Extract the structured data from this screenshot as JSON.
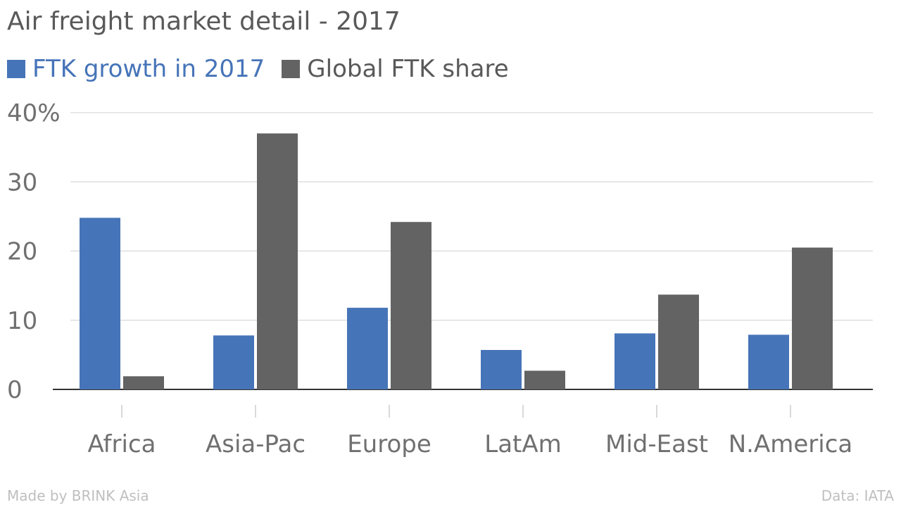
{
  "title": "Air freight market detail - 2017",
  "footer": {
    "made_by": "Made by BRINK Asia",
    "source": "Data: IATA"
  },
  "chart_data": {
    "type": "bar",
    "title": "Air freight market detail - 2017",
    "categories": [
      "Africa",
      "Asia-Pac",
      "Europe",
      "LatAm",
      "Mid-East",
      "N.America"
    ],
    "series": [
      {
        "name": "FTK growth in 2017",
        "color": "#4674b8",
        "values": [
          24.8,
          7.8,
          11.8,
          5.7,
          8.1,
          7.9
        ]
      },
      {
        "name": "Global FTK share",
        "color": "#636363",
        "values": [
          1.9,
          37.0,
          24.2,
          2.7,
          13.7,
          20.5
        ]
      }
    ],
    "ylim": [
      0,
      40
    ],
    "yticks": [
      0,
      10,
      20,
      30,
      40
    ],
    "ytick_labels": [
      "0",
      "10",
      "20",
      "30",
      "40%"
    ],
    "xlabel": "",
    "ylabel": "",
    "grid": true,
    "legend_position": "top-left"
  }
}
